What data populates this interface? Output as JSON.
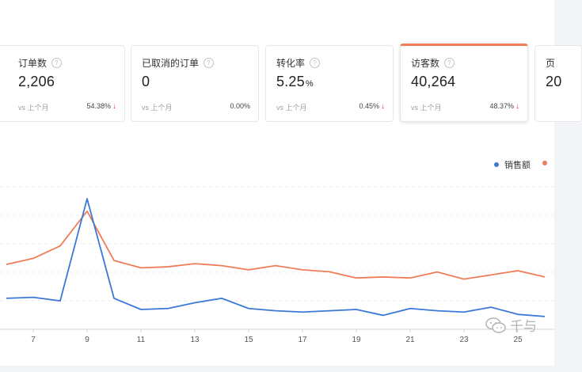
{
  "metrics": [
    {
      "label": "订单数",
      "value": "2,206",
      "unit": "",
      "compare": "vs 上个月",
      "change": "54.38%",
      "down": true
    },
    {
      "label": "已取消的订单",
      "value": "0",
      "unit": "",
      "compare": "vs 上个月",
      "change": "0.00%",
      "down": false
    },
    {
      "label": "转化率",
      "value": "5.25",
      "unit": "%",
      "compare": "vs 上个月",
      "change": "0.45%",
      "down": true
    },
    {
      "label": "访客数",
      "value": "40,264",
      "unit": "",
      "compare": "vs 上个月",
      "change": "48.37%",
      "down": true,
      "active": true
    },
    {
      "label": "页",
      "value": "20",
      "unit": "",
      "compare": "",
      "change": "",
      "down": false
    }
  ],
  "legend": {
    "sales_label": "销售额"
  },
  "watermark": {
    "text": "千与"
  },
  "colors": {
    "sales": "#3b78d8",
    "visitors": "#ef7d57",
    "accent": "#ef7d57",
    "down_arrow": "#e0442e"
  },
  "chart_data": {
    "type": "line",
    "x": [
      6,
      7,
      8,
      9,
      10,
      11,
      12,
      13,
      14,
      15,
      16,
      17,
      18,
      19,
      20,
      21,
      22,
      23,
      24,
      25,
      26
    ],
    "x_tick_labels": [
      "7",
      "9",
      "11",
      "13",
      "15",
      "17",
      "19",
      "21",
      "23",
      "25"
    ],
    "ylim": [
      0,
      100
    ],
    "grid": true,
    "legend_position": "top-right",
    "series": [
      {
        "name": "销售额",
        "color": "#3b78d8",
        "values": [
          20.5,
          21.2,
          18.7,
          90,
          20.5,
          12.7,
          13.4,
          17.4,
          20.5,
          13.4,
          11.8,
          10.9,
          11.8,
          12.7,
          8.6,
          13.4,
          11.8,
          10.9,
          14.3,
          9.3,
          7.8
        ]
      },
      {
        "color": "#ef7d57",
        "values": [
          44.1,
          48.4,
          57.1,
          81.3,
          46.9,
          41.8,
          42.5,
          44.7,
          43.3,
          40.4,
          43.3,
          40.4,
          39,
          34.7,
          35.4,
          34.7,
          38.9,
          33.9,
          36.8,
          39.8,
          35.4
        ]
      }
    ]
  }
}
